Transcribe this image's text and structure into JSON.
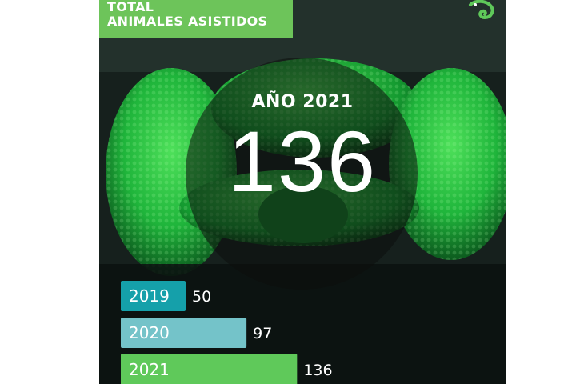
{
  "header": {
    "title_line1": "TOTAL",
    "title_line2": "ANIMALES ASISTIDOS"
  },
  "highlight": {
    "label": "AÑO 2021",
    "value": "136"
  },
  "logo_icon": "chameleon-icon",
  "colors": {
    "title_bg": "#6dc45a",
    "bar_2019": "#15a0aa",
    "bar_2020": "#74c3c9",
    "bar_2021": "#5fc95a"
  },
  "chart_data": {
    "type": "bar",
    "orientation": "horizontal",
    "categories": [
      "2019",
      "2020",
      "2021"
    ],
    "values": [
      50,
      97,
      136
    ],
    "title": "",
    "xlabel": "",
    "ylabel": ""
  }
}
